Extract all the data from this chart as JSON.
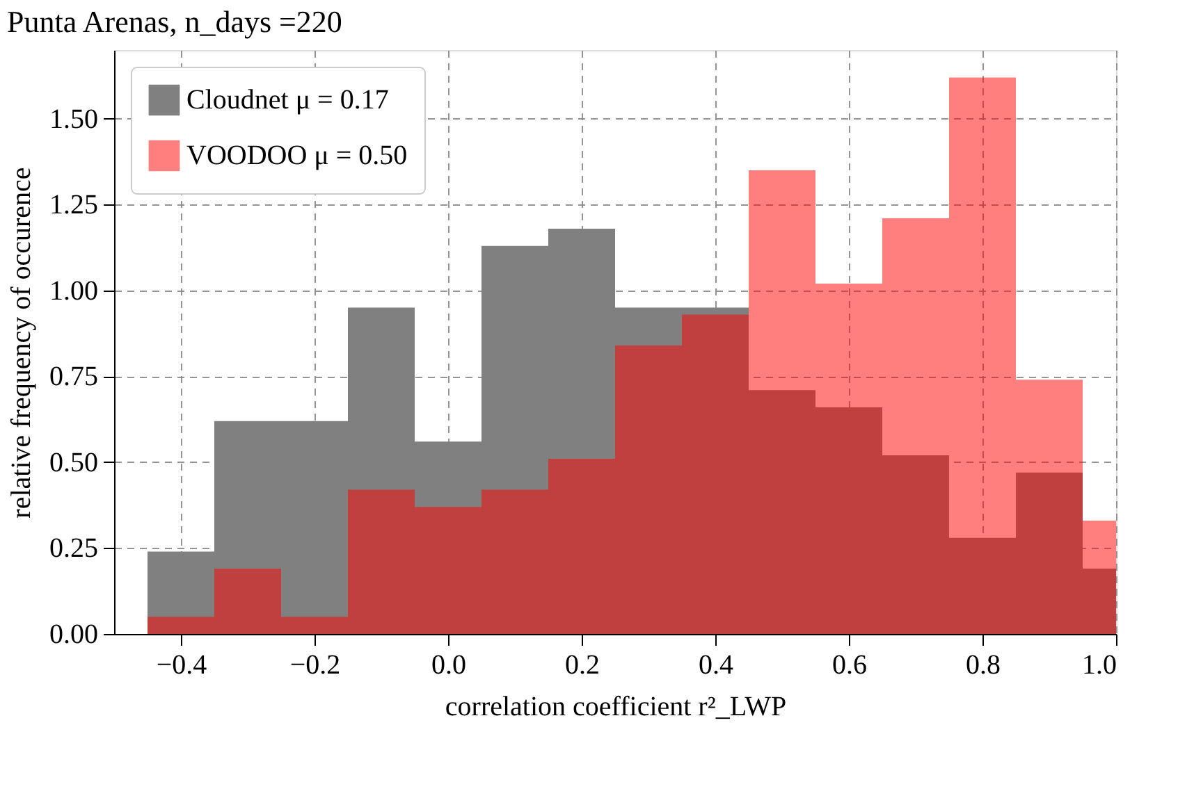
{
  "chart_data": {
    "type": "histogram",
    "title": "Punta Arenas, n_days =220",
    "xlabel": "correlation coefficient r²_LWP",
    "ylabel": "relative frequency of occurence",
    "bins": [
      -0.45,
      -0.35,
      -0.25,
      -0.15,
      -0.05,
      0.05,
      0.15,
      0.25,
      0.35,
      0.45,
      0.55,
      0.65,
      0.75,
      0.85,
      0.95,
      1.0
    ],
    "series": [
      {
        "name": "Cloudnet μ = 0.17",
        "color": "#808080",
        "values": [
          0.24,
          0.62,
          0.62,
          0.95,
          0.56,
          1.13,
          1.18,
          0.95,
          0.95,
          0.71,
          0.66,
          0.52,
          0.28,
          0.47,
          0.19
        ]
      },
      {
        "name": "VOODOO μ = 0.50",
        "color": "#ff0000",
        "values": [
          0.05,
          0.19,
          0.05,
          0.42,
          0.37,
          0.42,
          0.51,
          0.84,
          0.93,
          1.35,
          1.02,
          1.21,
          1.62,
          0.74,
          0.33
        ]
      }
    ],
    "xlim": [
      -0.5,
      1.0
    ],
    "ylim": [
      0,
      1.7
    ],
    "xticks": [
      {
        "value": -0.4,
        "label": "−0.4"
      },
      {
        "value": -0.2,
        "label": "−0.2"
      },
      {
        "value": 0.0,
        "label": "0.0"
      },
      {
        "value": 0.2,
        "label": "0.2"
      },
      {
        "value": 0.4,
        "label": "0.4"
      },
      {
        "value": 0.6,
        "label": "0.6"
      },
      {
        "value": 0.8,
        "label": "0.8"
      },
      {
        "value": 1.0,
        "label": "1.0"
      }
    ],
    "yticks": [
      {
        "value": 0,
        "label": "0.00"
      },
      {
        "value": 0.25,
        "label": "0.25"
      },
      {
        "value": 0.5,
        "label": "0.50"
      },
      {
        "value": 0.75,
        "label": "0.75"
      },
      {
        "value": 1.0,
        "label": "1.00"
      },
      {
        "value": 1.25,
        "label": "1.25"
      },
      {
        "value": 1.5,
        "label": "1.50"
      }
    ],
    "grid": true,
    "legend": "top left"
  }
}
